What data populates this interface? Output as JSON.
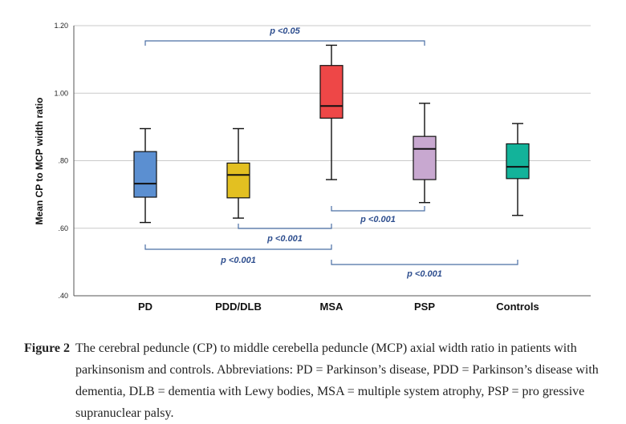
{
  "chart_data": {
    "type": "boxplot",
    "ylabel": "Mean CP to MCP width ratio",
    "ylim": [
      0.4,
      1.2
    ],
    "y_ticks": [
      {
        "value": 0.4,
        "label": ".40"
      },
      {
        "value": 0.6,
        "label": ".60"
      },
      {
        "value": 0.8,
        "label": ".80"
      },
      {
        "value": 1.0,
        "label": "1.00"
      },
      {
        "value": 1.2,
        "label": "1.20"
      }
    ],
    "grid": true,
    "categories": [
      "PD",
      "PDD/DLB",
      "MSA",
      "PSP",
      "Controls"
    ],
    "boxes": [
      {
        "category": "PD",
        "whisker_low": 0.617,
        "q1": 0.692,
        "median": 0.732,
        "q3": 0.827,
        "whisker_high": 0.895,
        "color": "#5b8fd1"
      },
      {
        "category": "PDD/DLB",
        "whisker_low": 0.63,
        "q1": 0.69,
        "median": 0.758,
        "q3": 0.793,
        "whisker_high": 0.895,
        "color": "#e3c021"
      },
      {
        "category": "MSA",
        "whisker_low": 0.744,
        "q1": 0.926,
        "median": 0.962,
        "q3": 1.082,
        "whisker_high": 1.142,
        "color": "#ee4747"
      },
      {
        "category": "PSP",
        "whisker_low": 0.676,
        "q1": 0.744,
        "median": 0.835,
        "q3": 0.872,
        "whisker_high": 0.97,
        "color": "#c8a8d0"
      },
      {
        "category": "Controls",
        "whisker_low": 0.638,
        "q1": 0.747,
        "median": 0.782,
        "q3": 0.85,
        "whisker_high": 0.91,
        "color": "#13b39a"
      }
    ],
    "comparisons": [
      {
        "from": "PD",
        "to": "PSP",
        "label": "p <0.05",
        "position": "above"
      },
      {
        "from": "MSA",
        "to": "PSP",
        "label": "p <0.001",
        "position": "below"
      },
      {
        "from": "PDD/DLB",
        "to": "MSA",
        "label": "p <0.001",
        "position": "below"
      },
      {
        "from": "PD",
        "to": "MSA",
        "label": "p <0.001",
        "position": "below"
      },
      {
        "from": "MSA",
        "to": "Controls",
        "label": "p <0.001",
        "position": "below"
      }
    ],
    "bracket_color": "#4a6fa5"
  },
  "caption": {
    "label": "Figure 2",
    "text": "The cerebral peduncle (CP) to middle cerebella peduncle (MCP) axial width ratio in patients with parkinsonism and controls. Abbreviations: PD = Parkinson’s disease, PDD = Parkinson’s disease with dementia, DLB = dementia with Lewy bodies, MSA = multiple system atrophy, PSP = pro gressive supranuclear palsy."
  }
}
